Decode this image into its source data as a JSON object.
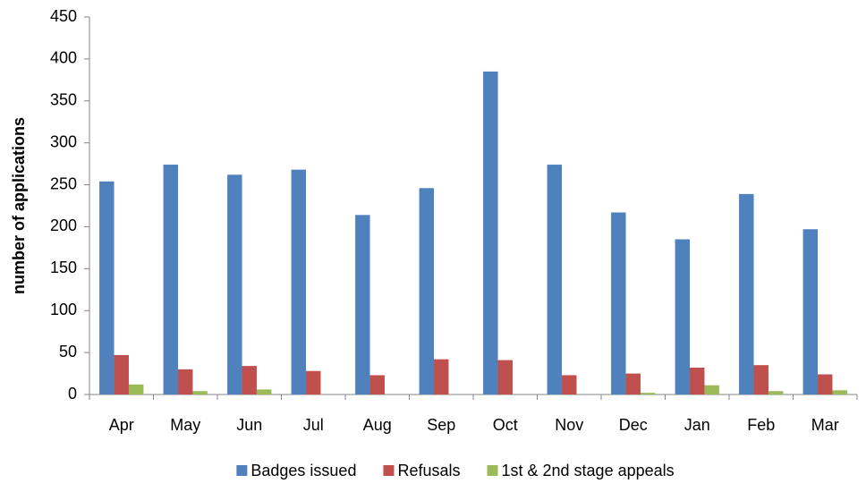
{
  "chart_data": {
    "type": "bar",
    "y_label": "number of applications",
    "categories": [
      "Apr",
      "May",
      "Jun",
      "Jul",
      "Aug",
      "Sep",
      "Oct",
      "Nov",
      "Dec",
      "Jan",
      "Feb",
      "Mar"
    ],
    "series": [
      {
        "name": "Badges issued",
        "color": "#4f81bd",
        "values": [
          254,
          274,
          262,
          268,
          214,
          246,
          385,
          274,
          217,
          185,
          239,
          197
        ]
      },
      {
        "name": "Refusals",
        "color": "#c0504d",
        "values": [
          47,
          30,
          34,
          28,
          23,
          42,
          41,
          23,
          25,
          32,
          35,
          24
        ]
      },
      {
        "name": "1st & 2nd stage appeals",
        "color": "#9bbb59",
        "values": [
          12,
          4,
          6,
          0,
          0,
          0,
          0,
          0,
          2,
          11,
          4,
          5
        ]
      }
    ],
    "ylim": [
      0,
      450
    ],
    "yticks": [
      0,
      50,
      100,
      150,
      200,
      250,
      300,
      350,
      400,
      450
    ],
    "grid": false,
    "legend": "bottom"
  }
}
